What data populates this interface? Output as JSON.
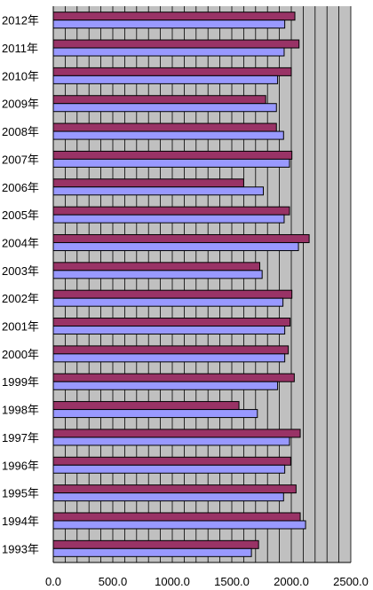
{
  "chart_data": {
    "type": "bar",
    "orientation": "horizontal",
    "title": "",
    "xlabel": "",
    "ylabel": "",
    "categories": [
      "2012年",
      "2011年",
      "2010年",
      "2009年",
      "2008年",
      "2007年",
      "2006年",
      "2005年",
      "2004年",
      "2003年",
      "2002年",
      "2001年",
      "2000年",
      "1999年",
      "1998年",
      "1997年",
      "1996年",
      "1995年",
      "1994年",
      "1993年"
    ],
    "series": [
      {
        "color": "#993366",
        "values": [
          2030,
          2065,
          2000,
          1785,
          1875,
          2005,
          1600,
          1985,
          2150,
          1735,
          2005,
          1990,
          1975,
          2025,
          1560,
          2075,
          1995,
          2040,
          2075,
          1725
        ]
      },
      {
        "color": "#9999ff",
        "values": [
          1945,
          1940,
          1885,
          1875,
          1935,
          1985,
          1765,
          1940,
          2060,
          1755,
          1930,
          1945,
          1945,
          1885,
          1715,
          1985,
          1945,
          1935,
          2120,
          1665
        ]
      }
    ],
    "xlim": [
      0,
      2500
    ],
    "xticks": [
      0,
      500,
      1000,
      1500,
      2000,
      2500
    ],
    "xtick_labels": [
      "0.0",
      "500.0",
      "1000.0",
      "1500.0",
      "2000.0",
      "2500.0"
    ],
    "minor_step": 100,
    "grid": true,
    "plot_background": "#c0c0c0",
    "legend": "none"
  }
}
